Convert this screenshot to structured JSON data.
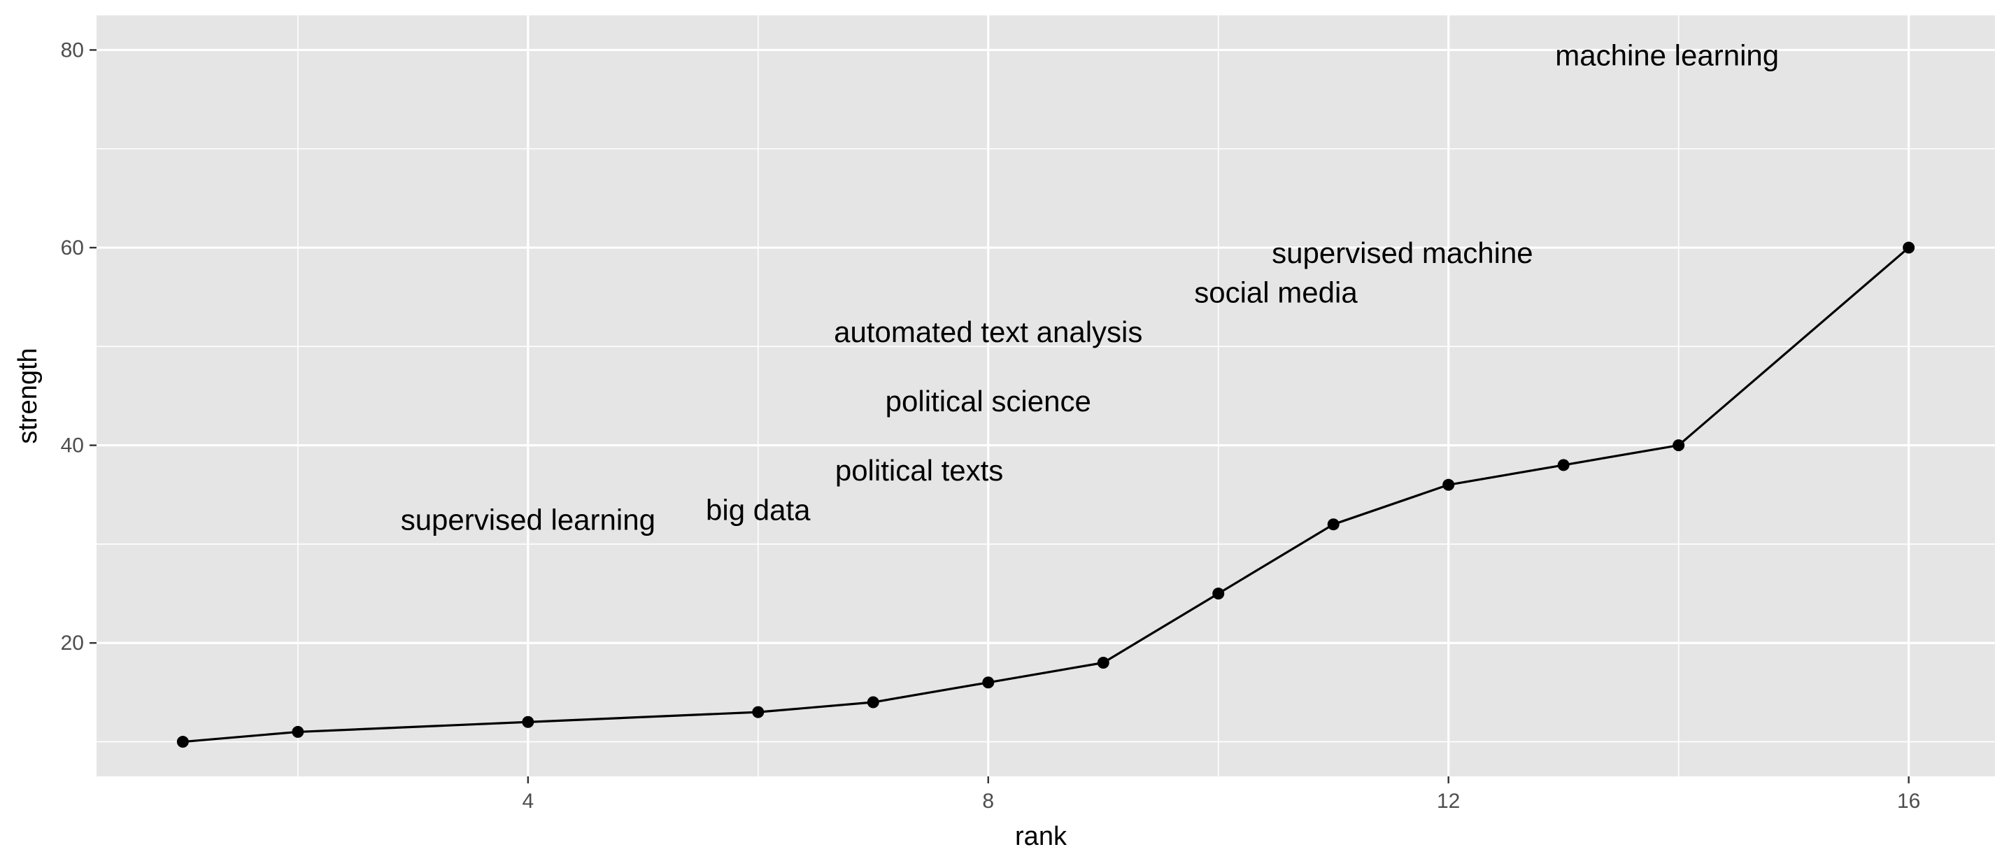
{
  "chart_data": {
    "type": "line",
    "title": "",
    "xlabel": "rank",
    "ylabel": "strength",
    "xlim": [
      0.25,
      16.75
    ],
    "ylim": [
      6.5,
      83.5
    ],
    "x_ticks": [
      4,
      8,
      12,
      16
    ],
    "x_tick_labels": [
      "4",
      "8",
      "12",
      "16"
    ],
    "x_minor": [
      2,
      6,
      10,
      14
    ],
    "y_ticks": [
      20,
      40,
      60,
      80
    ],
    "y_tick_labels": [
      "20",
      "40",
      "60",
      "80"
    ],
    "y_minor": [
      10,
      30,
      50,
      70
    ],
    "grid": true,
    "panel_background": "#e5e5e5",
    "grid_color": "#ffffff",
    "line_color": "#000000",
    "series": [
      {
        "x": [
          1,
          2,
          4,
          6,
          7,
          8,
          9,
          10,
          11,
          12,
          13,
          14,
          16
        ],
        "y": [
          10,
          11,
          12,
          13,
          14,
          16,
          18,
          25,
          32,
          36,
          38,
          40,
          60
        ]
      }
    ],
    "annotations": [
      {
        "text": "supervised learning",
        "x": 4,
        "y": 32.5
      },
      {
        "text": "big data",
        "x": 6,
        "y": 33.5
      },
      {
        "text": "political texts",
        "x": 7.4,
        "y": 37.5
      },
      {
        "text": "political science",
        "x": 8,
        "y": 44.5
      },
      {
        "text": "automated text analysis",
        "x": 8,
        "y": 51.5
      },
      {
        "text": "social media",
        "x": 10.5,
        "y": 55.5
      },
      {
        "text": "supervised machine",
        "x": 11.6,
        "y": 59.5
      },
      {
        "text": "machine learning",
        "x": 13.9,
        "y": 79.5
      }
    ]
  }
}
